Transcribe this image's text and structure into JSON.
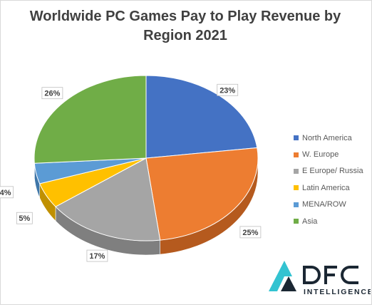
{
  "chart_data": {
    "type": "pie",
    "title": "Worldwide  PC Games Pay to Play Revenue by Region 2021",
    "categories": [
      "North America",
      "W. Europe",
      "E Europe/ Russia",
      "Latin America",
      "MENA/ROW",
      "Asia"
    ],
    "values": [
      23,
      25,
      17,
      5,
      4,
      26
    ],
    "labels": [
      "23%",
      "25%",
      "17%",
      "5%",
      "4%",
      "26%"
    ],
    "colors": [
      "#4472c4",
      "#ed7d31",
      "#a5a5a5",
      "#ffc000",
      "#5b9bd5",
      "#70ad47"
    ],
    "side_colors": [
      "#2f5597",
      "#b55a1e",
      "#7f7f7f",
      "#c09000",
      "#3f76a8",
      "#548235"
    ],
    "legend_position": "right",
    "style": "3d"
  },
  "logo": {
    "name": "DFC",
    "subtitle": "INTELLIGENCE",
    "accent_color": "#33c3d1",
    "dark_color": "#1b2733"
  }
}
